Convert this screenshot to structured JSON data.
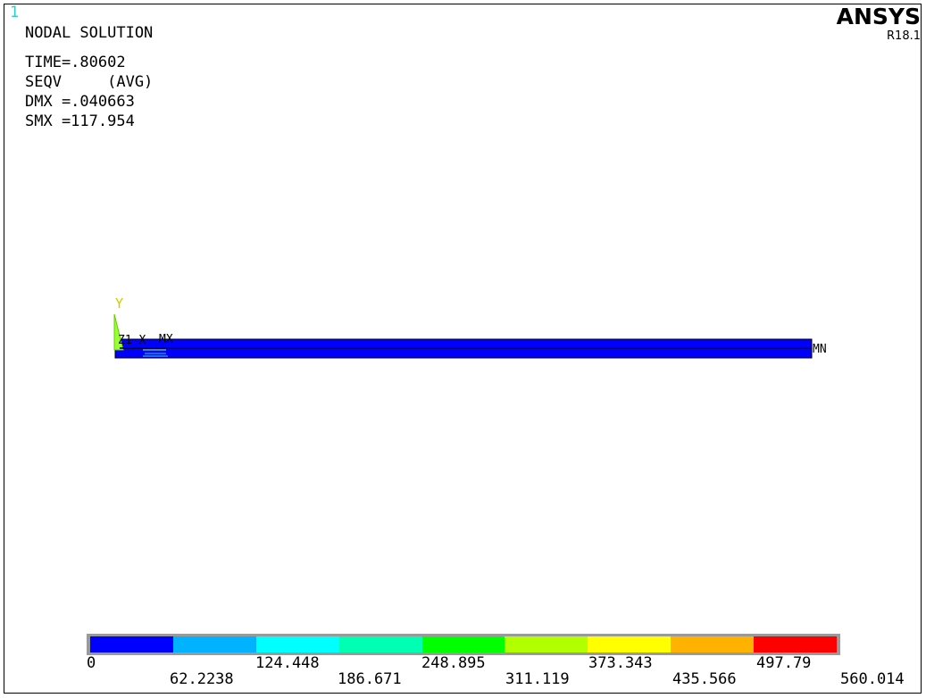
{
  "window_number": "1",
  "header": {
    "title": "NODAL SOLUTION",
    "lines": [
      "TIME=.80602",
      "SEQV     (AVG)",
      "DMX =.040663",
      "SMX =117.954"
    ]
  },
  "brand": {
    "name": "ANSYS",
    "release": "R18.1"
  },
  "model_labels": {
    "axis_y": "Y",
    "axis_z_x": "Z1  X",
    "max_label": "MX",
    "min_label": "MN"
  },
  "legend": {
    "colors": [
      "#0000ff",
      "#00b2ff",
      "#00ffff",
      "#00ffb2",
      "#00ff00",
      "#b2ff00",
      "#ffff00",
      "#ffb200",
      "#ff0000"
    ],
    "upper_labels": [
      "0",
      "124.448",
      "248.895",
      "373.343",
      "497.79"
    ],
    "lower_labels": [
      "62.2238",
      "186.671",
      "311.119",
      "435.566",
      "560.014"
    ]
  }
}
